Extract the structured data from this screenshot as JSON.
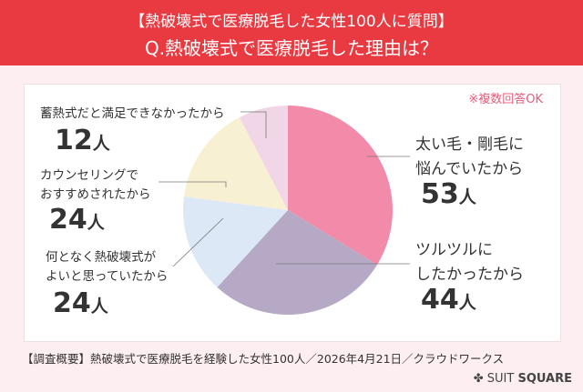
{
  "header": {
    "line1": "【熱破壊式で医療脱毛した女性100人に質問】",
    "line2": "Q.熱破壊式で医療脱毛した理由は？"
  },
  "note": "※複数回答OK",
  "chart_data": {
    "type": "pie",
    "unit": "人",
    "categories": [
      "太い毛・剛毛に悩んでいたから",
      "ツルツルにしたかったから",
      "何となく熱破壊式がよいと思っていたから",
      "カウンセリングでおすすめされたから",
      "蓄熱式だと満足できなかったから"
    ],
    "values": [
      53,
      44,
      24,
      24,
      12
    ],
    "colors": [
      "#f28baa",
      "#b5a9c6",
      "#dde8f6",
      "#f8f0d2",
      "#f0d6e6"
    ]
  },
  "labels": {
    "s0": {
      "l1": "太い毛・剛毛に",
      "l2": "悩んでいたから",
      "num": "53",
      "unit": "人"
    },
    "s1": {
      "l1": "ツルツルに",
      "l2": "したかったから",
      "num": "44",
      "unit": "人"
    },
    "s2": {
      "l1": "何となく熱破壊式が",
      "l2": "よいと思っていたから",
      "num": "24",
      "unit": "人"
    },
    "s3": {
      "l1": "カウンセリングで",
      "l2": "おすすめされたから",
      "num": "24",
      "unit": "人"
    },
    "s4": {
      "l1": "蓄熱式だと満足できなかったから",
      "num": "12",
      "unit": "人"
    }
  },
  "footer": "【調査概要】熱破壊式で医療脱毛を経験した女性100人／2026年4月21日／クラウドワークス",
  "logo": {
    "a": "SUIT",
    "b": "SQUARE"
  }
}
